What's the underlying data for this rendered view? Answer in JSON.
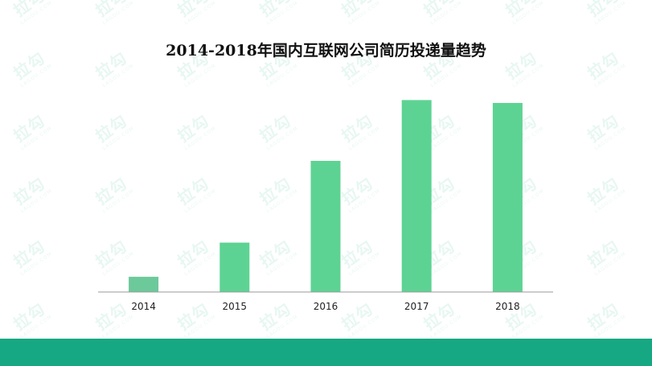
{
  "watermark": {
    "main_text": "拉勾",
    "sub_text": "LAGOU.COM"
  },
  "colors": {
    "bar": "#5dd393",
    "bar_first": "#6cc99a",
    "axis": "#999999",
    "band": "#16a882"
  },
  "chart_data": {
    "type": "bar",
    "title": "2014-2018年国内互联网公司简历投递量趋势",
    "categories": [
      "2014",
      "2015",
      "2016",
      "2017",
      "2018"
    ],
    "values": [
      8,
      26,
      69,
      101,
      99.5
    ],
    "ylim": [
      0,
      105
    ],
    "xlabel": "",
    "ylabel": "",
    "grid": false,
    "legend": "none"
  }
}
